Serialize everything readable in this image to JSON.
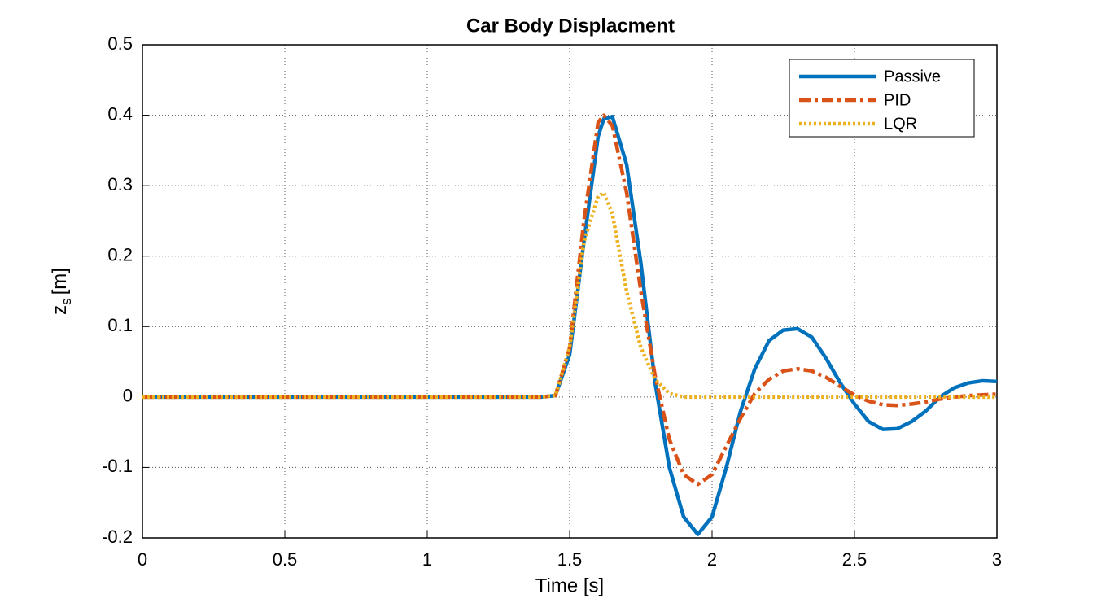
{
  "chart_data": {
    "type": "line",
    "title": "Car Body Displacment",
    "xlabel": "Time [s]",
    "ylabel": {
      "main": "z",
      "sub": "s",
      "unit": "[m]"
    },
    "x": [
      0,
      1.4,
      1.45,
      1.5,
      1.55,
      1.6,
      1.62,
      1.65,
      1.7,
      1.75,
      1.8,
      1.85,
      1.9,
      1.95,
      2,
      2.05,
      2.1,
      2.15,
      2.2,
      2.25,
      2.3,
      2.35,
      2.4,
      2.45,
      2.5,
      2.55,
      2.6,
      2.65,
      2.7,
      2.75,
      2.8,
      2.85,
      2.9,
      2.95,
      3
    ],
    "series": [
      {
        "name": "Passive",
        "color": "#0072BD",
        "dash": "solid",
        "values": [
          0,
          0,
          0.002,
          0.06,
          0.22,
          0.37,
          0.395,
          0.398,
          0.33,
          0.19,
          0.02,
          -0.1,
          -0.17,
          -0.195,
          -0.17,
          -0.1,
          -0.02,
          0.04,
          0.08,
          0.095,
          0.097,
          0.085,
          0.055,
          0.02,
          -0.01,
          -0.035,
          -0.046,
          -0.045,
          -0.035,
          -0.02,
          0,
          0.013,
          0.02,
          0.023,
          0.022
        ]
      },
      {
        "name": "PID",
        "color": "#D95319",
        "dash": "dashdot",
        "values": [
          0,
          0,
          0.002,
          0.07,
          0.25,
          0.39,
          0.4,
          0.385,
          0.29,
          0.15,
          0.03,
          -0.06,
          -0.11,
          -0.124,
          -0.11,
          -0.07,
          -0.03,
          0.005,
          0.025,
          0.037,
          0.04,
          0.037,
          0.028,
          0.015,
          0.003,
          -0.006,
          -0.011,
          -0.012,
          -0.01,
          -0.007,
          -0.003,
          0,
          0.002,
          0.003,
          0.004
        ]
      },
      {
        "name": "LQR",
        "color": "#EDB120",
        "dash": "dotted",
        "values": [
          0,
          0,
          0.002,
          0.07,
          0.22,
          0.285,
          0.29,
          0.26,
          0.15,
          0.07,
          0.025,
          0.005,
          0,
          0,
          0,
          0,
          0,
          0,
          0,
          0,
          0,
          0,
          0,
          0,
          0,
          0,
          0,
          0,
          0,
          0,
          0,
          0,
          0,
          0,
          0
        ]
      }
    ],
    "xlim": [
      0,
      3
    ],
    "xticks": [
      0,
      0.5,
      1,
      1.5,
      2,
      2.5,
      3
    ],
    "ylim": [
      -0.2,
      0.5
    ],
    "yticks": [
      -0.2,
      -0.1,
      0,
      0.1,
      0.2,
      0.3,
      0.4,
      0.5
    ],
    "grid": true,
    "legend": "top-right"
  }
}
